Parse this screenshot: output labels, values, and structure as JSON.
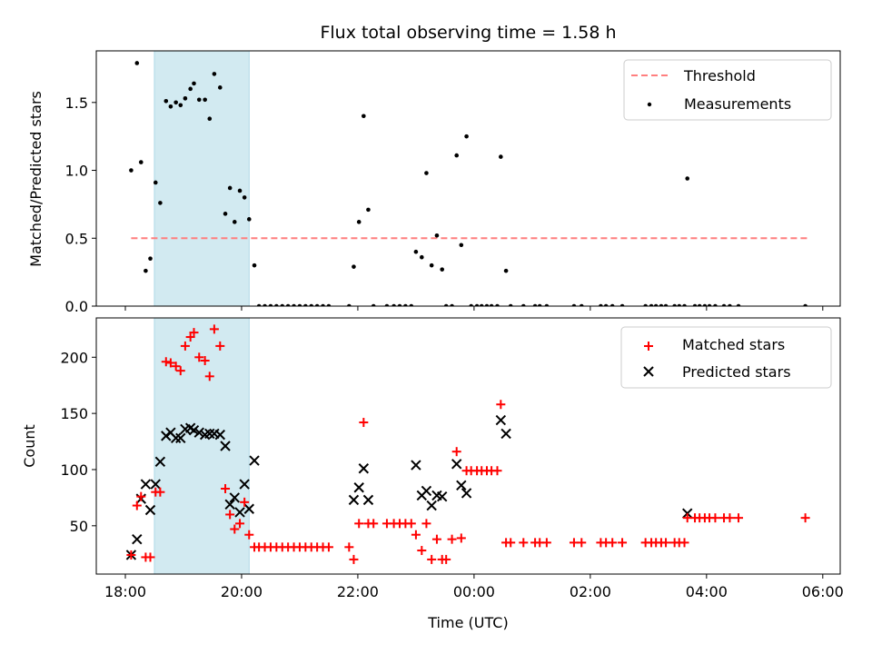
{
  "chart_data": [
    {
      "type": "scatter",
      "title": "Flux total observing time = 1.58 h",
      "ylabel": "Matched/Predicted stars",
      "xlim_hours": [
        17.5,
        30.3
      ],
      "ylim": [
        0,
        1.88
      ],
      "yticks": [
        0.0,
        0.5,
        1.0,
        1.5
      ],
      "ytick_labels": [
        "0.0",
        "0.5",
        "1.0",
        "1.5"
      ],
      "shaded_span_hours": [
        18.5,
        20.13
      ],
      "shaded_color": "#add8e6",
      "legend": {
        "position": "top-right",
        "entries": [
          "Threshold",
          "Measurements"
        ]
      },
      "threshold": {
        "name": "Threshold",
        "y": 0.5,
        "x_range_hours": [
          18.1,
          29.77
        ],
        "color": "#ff7f7f",
        "style": "dashed"
      },
      "series": [
        {
          "name": "Measurements",
          "color": "#000000",
          "points": [
            [
              18.1,
              1.0
            ],
            [
              18.2,
              1.79
            ],
            [
              18.27,
              1.06
            ],
            [
              18.35,
              0.26
            ],
            [
              18.43,
              0.35
            ],
            [
              18.52,
              0.91
            ],
            [
              18.6,
              0.76
            ],
            [
              18.7,
              1.51
            ],
            [
              18.78,
              1.47
            ],
            [
              18.87,
              1.5
            ],
            [
              18.95,
              1.48
            ],
            [
              19.03,
              1.53
            ],
            [
              19.12,
              1.6
            ],
            [
              19.18,
              1.64
            ],
            [
              19.27,
              1.52
            ],
            [
              19.37,
              1.52
            ],
            [
              19.45,
              1.38
            ],
            [
              19.53,
              1.71
            ],
            [
              19.63,
              1.61
            ],
            [
              19.72,
              0.68
            ],
            [
              19.8,
              0.87
            ],
            [
              19.88,
              0.62
            ],
            [
              19.97,
              0.85
            ],
            [
              20.05,
              0.8
            ],
            [
              20.13,
              0.64
            ],
            [
              20.22,
              0.3
            ],
            [
              20.3,
              0
            ],
            [
              20.4,
              0
            ],
            [
              20.5,
              0
            ],
            [
              20.6,
              0
            ],
            [
              20.7,
              0
            ],
            [
              20.8,
              0
            ],
            [
              20.9,
              0
            ],
            [
              21.0,
              0
            ],
            [
              21.1,
              0
            ],
            [
              21.2,
              0
            ],
            [
              21.3,
              0
            ],
            [
              21.4,
              0
            ],
            [
              21.5,
              0
            ],
            [
              21.85,
              0
            ],
            [
              21.93,
              0.29
            ],
            [
              22.02,
              0.62
            ],
            [
              22.1,
              1.4
            ],
            [
              22.18,
              0.71
            ],
            [
              22.27,
              0
            ],
            [
              22.5,
              0
            ],
            [
              22.62,
              0
            ],
            [
              22.72,
              0
            ],
            [
              22.82,
              0
            ],
            [
              22.92,
              0
            ],
            [
              23.0,
              0.4
            ],
            [
              23.1,
              0.36
            ],
            [
              23.18,
              0.98
            ],
            [
              23.27,
              0.3
            ],
            [
              23.36,
              0.52
            ],
            [
              23.45,
              0.27
            ],
            [
              23.52,
              0
            ],
            [
              23.62,
              0
            ],
            [
              23.7,
              1.11
            ],
            [
              23.78,
              0.45
            ],
            [
              23.87,
              1.25
            ],
            [
              23.95,
              0
            ],
            [
              24.05,
              0
            ],
            [
              24.13,
              0
            ],
            [
              24.22,
              0
            ],
            [
              24.3,
              0
            ],
            [
              24.4,
              0
            ],
            [
              24.46,
              1.1
            ],
            [
              24.55,
              0.26
            ],
            [
              24.63,
              0
            ],
            [
              24.85,
              0
            ],
            [
              25.05,
              0
            ],
            [
              25.13,
              0
            ],
            [
              25.25,
              0
            ],
            [
              25.72,
              0
            ],
            [
              25.85,
              0
            ],
            [
              26.18,
              0
            ],
            [
              26.27,
              0
            ],
            [
              26.38,
              0
            ],
            [
              26.55,
              0
            ],
            [
              26.95,
              0
            ],
            [
              27.05,
              0
            ],
            [
              27.13,
              0
            ],
            [
              27.22,
              0
            ],
            [
              27.3,
              0
            ],
            [
              27.45,
              0
            ],
            [
              27.53,
              0
            ],
            [
              27.62,
              0
            ],
            [
              27.67,
              0.94
            ],
            [
              27.8,
              0
            ],
            [
              27.88,
              0
            ],
            [
              27.97,
              0
            ],
            [
              28.05,
              0
            ],
            [
              28.15,
              0
            ],
            [
              28.3,
              0
            ],
            [
              28.4,
              0
            ],
            [
              28.55,
              0
            ],
            [
              29.7,
              0
            ]
          ]
        }
      ]
    },
    {
      "type": "scatter",
      "ylabel": "Count",
      "xlabel": "Time (UTC)",
      "xlim_hours": [
        17.5,
        30.3
      ],
      "ylim": [
        7,
        235
      ],
      "yticks": [
        50,
        100,
        150,
        200
      ],
      "ytick_labels": [
        "50",
        "100",
        "150",
        "200"
      ],
      "xticks_hours": [
        18,
        20,
        22,
        24,
        26,
        28,
        30
      ],
      "xtick_labels": [
        "18:00",
        "20:00",
        "22:00",
        "00:00",
        "02:00",
        "04:00",
        "06:00"
      ],
      "shaded_span_hours": [
        18.5,
        20.13
      ],
      "shaded_color": "#add8e6",
      "legend": {
        "position": "top-right",
        "entries": [
          "Matched stars",
          "Predicted stars"
        ]
      },
      "series": [
        {
          "name": "Matched stars",
          "marker": "plus",
          "color": "#ff0000",
          "points": [
            [
              18.1,
              24
            ],
            [
              18.2,
              68
            ],
            [
              18.27,
              76
            ],
            [
              18.35,
              22
            ],
            [
              18.43,
              22
            ],
            [
              18.52,
              80
            ],
            [
              18.6,
              80
            ],
            [
              18.7,
              196
            ],
            [
              18.78,
              195
            ],
            [
              18.87,
              192
            ],
            [
              18.95,
              188
            ],
            [
              19.03,
              210
            ],
            [
              19.12,
              218
            ],
            [
              19.18,
              222
            ],
            [
              19.27,
              200
            ],
            [
              19.37,
              197
            ],
            [
              19.45,
              183
            ],
            [
              19.53,
              225
            ],
            [
              19.63,
              210
            ],
            [
              19.72,
              83
            ],
            [
              19.8,
              60
            ],
            [
              19.88,
              47
            ],
            [
              19.97,
              52
            ],
            [
              20.05,
              71
            ],
            [
              20.13,
              42
            ],
            [
              20.22,
              31
            ],
            [
              20.3,
              31
            ],
            [
              20.4,
              31
            ],
            [
              20.5,
              31
            ],
            [
              20.6,
              31
            ],
            [
              20.7,
              31
            ],
            [
              20.8,
              31
            ],
            [
              20.9,
              31
            ],
            [
              21.0,
              31
            ],
            [
              21.1,
              31
            ],
            [
              21.2,
              31
            ],
            [
              21.3,
              31
            ],
            [
              21.4,
              31
            ],
            [
              21.5,
              31
            ],
            [
              21.85,
              31
            ],
            [
              21.93,
              20
            ],
            [
              22.02,
              52
            ],
            [
              22.1,
              142
            ],
            [
              22.18,
              52
            ],
            [
              22.27,
              52
            ],
            [
              22.5,
              52
            ],
            [
              22.62,
              52
            ],
            [
              22.72,
              52
            ],
            [
              22.82,
              52
            ],
            [
              22.92,
              52
            ],
            [
              23.0,
              42
            ],
            [
              23.1,
              28
            ],
            [
              23.18,
              52
            ],
            [
              23.27,
              20
            ],
            [
              23.36,
              38
            ],
            [
              23.45,
              20
            ],
            [
              23.52,
              20
            ],
            [
              23.62,
              38
            ],
            [
              23.7,
              116
            ],
            [
              23.78,
              39
            ],
            [
              23.87,
              99
            ],
            [
              23.95,
              99
            ],
            [
              24.05,
              99
            ],
            [
              24.13,
              99
            ],
            [
              24.22,
              99
            ],
            [
              24.3,
              99
            ],
            [
              24.4,
              99
            ],
            [
              24.46,
              158
            ],
            [
              24.55,
              35
            ],
            [
              24.63,
              35
            ],
            [
              24.85,
              35
            ],
            [
              25.05,
              35
            ],
            [
              25.13,
              35
            ],
            [
              25.25,
              35
            ],
            [
              25.72,
              35
            ],
            [
              25.85,
              35
            ],
            [
              26.18,
              35
            ],
            [
              26.27,
              35
            ],
            [
              26.38,
              35
            ],
            [
              26.55,
              35
            ],
            [
              26.95,
              35
            ],
            [
              27.05,
              35
            ],
            [
              27.13,
              35
            ],
            [
              27.22,
              35
            ],
            [
              27.3,
              35
            ],
            [
              27.45,
              35
            ],
            [
              27.53,
              35
            ],
            [
              27.62,
              35
            ],
            [
              27.67,
              57
            ],
            [
              27.8,
              57
            ],
            [
              27.88,
              57
            ],
            [
              27.97,
              57
            ],
            [
              28.05,
              57
            ],
            [
              28.15,
              57
            ],
            [
              28.3,
              57
            ],
            [
              28.4,
              57
            ],
            [
              28.55,
              57
            ],
            [
              29.7,
              57
            ]
          ]
        },
        {
          "name": "Predicted stars",
          "marker": "x",
          "color": "#000000",
          "points": [
            [
              18.1,
              24
            ],
            [
              18.2,
              38
            ],
            [
              18.27,
              74
            ],
            [
              18.35,
              87
            ],
            [
              18.43,
              64
            ],
            [
              18.52,
              87
            ],
            [
              18.6,
              107
            ],
            [
              18.7,
              130
            ],
            [
              18.78,
              133
            ],
            [
              18.87,
              128
            ],
            [
              18.95,
              128
            ],
            [
              19.03,
              136
            ],
            [
              19.12,
              137
            ],
            [
              19.18,
              135
            ],
            [
              19.27,
              133
            ],
            [
              19.37,
              131
            ],
            [
              19.45,
              132
            ],
            [
              19.53,
              132
            ],
            [
              19.63,
              131
            ],
            [
              19.72,
              121
            ],
            [
              19.8,
              69
            ],
            [
              19.88,
              75
            ],
            [
              19.97,
              62
            ],
            [
              20.05,
              87
            ],
            [
              20.13,
              65
            ],
            [
              20.22,
              108
            ],
            [
              21.93,
              73
            ],
            [
              22.02,
              84
            ],
            [
              22.1,
              101
            ],
            [
              22.18,
              73
            ],
            [
              23.0,
              104
            ],
            [
              23.1,
              77
            ],
            [
              23.18,
              81
            ],
            [
              23.27,
              68
            ],
            [
              23.36,
              77
            ],
            [
              23.45,
              76
            ],
            [
              23.7,
              105
            ],
            [
              23.78,
              86
            ],
            [
              23.87,
              79
            ],
            [
              24.46,
              144
            ],
            [
              24.55,
              132
            ],
            [
              27.67,
              61
            ]
          ]
        }
      ]
    }
  ]
}
